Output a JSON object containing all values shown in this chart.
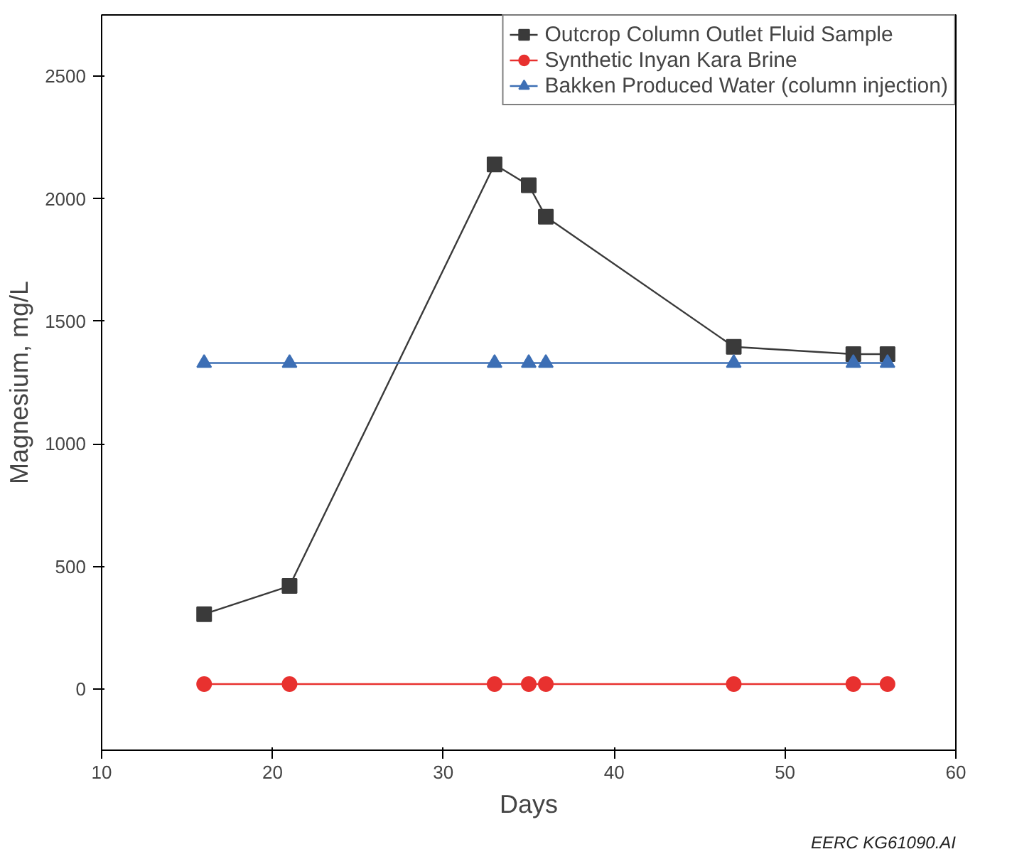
{
  "chart_data": {
    "type": "line",
    "xlabel": "Days",
    "ylabel": "Magnesium, mg/L",
    "x": [
      16,
      21,
      33,
      35,
      36,
      47,
      54,
      56
    ],
    "series": [
      {
        "name": "Outcrop Column Outlet Fluid Sample",
        "color": "#3a3a3a",
        "marker": "square",
        "values": [
          305,
          420,
          2140,
          2055,
          1927,
          1396,
          1366,
          1366
        ]
      },
      {
        "name": "Synthetic Inyan Kara Brine",
        "color": "#e8312f",
        "marker": "circle",
        "values": [
          20,
          20,
          20,
          20,
          20,
          20,
          20,
          20
        ]
      },
      {
        "name": "Bakken Produced Water (column injection)",
        "color": "#3d6fb5",
        "marker": "triangle",
        "values": [
          1330,
          1330,
          1330,
          1330,
          1330,
          1330,
          1330,
          1330
        ]
      }
    ],
    "xlim": [
      10,
      60
    ],
    "xticks": [
      10,
      20,
      30,
      40,
      50,
      60
    ],
    "ylim": [
      -250,
      2750
    ],
    "yticks": [
      0,
      500,
      1000,
      1500,
      2000,
      2500
    ],
    "grid": false,
    "legend": "top right",
    "line_style": "solid",
    "annotations": [
      "EERC KG61090.AI"
    ]
  }
}
